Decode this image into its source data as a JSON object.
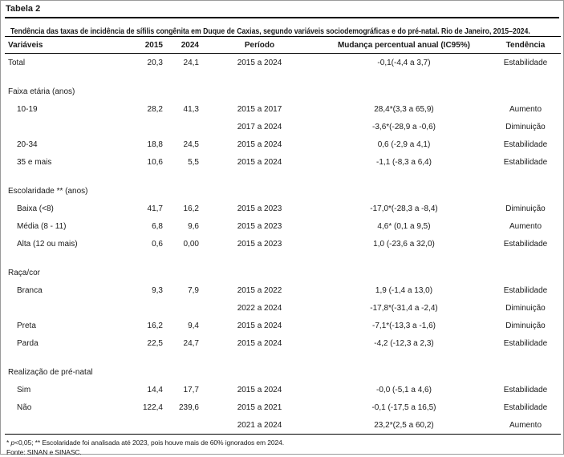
{
  "page": {
    "table_label": "Tabela 2",
    "title": "Tendência das taxas de incidência de sífilis congênita em Duque de Caxias, segundo variáveis sociodemográficas e do pré-natal. Rio de Janeiro, 2015–2024.",
    "footnote_prefix": "* ",
    "footnote_p": "p",
    "footnote_rest": "<0,05; ** Escolaridade foi analisada até 2023, pois houve mais de 60% ignorados em 2024.",
    "source": "Fonte: SINAN e SINASC."
  },
  "table": {
    "columns": [
      "Variáveis",
      "2015",
      "2024",
      "Período",
      "Mudança percentual anual (IC95%)",
      "Tendência"
    ],
    "rows": [
      {
        "type": "data",
        "indent": false,
        "label": "Total",
        "v2015": "20,3",
        "v2024": "24,1",
        "period": "2015 a 2024",
        "change": "-0,1(-4,4 a 3,7)",
        "trend": "Estabilidade"
      },
      {
        "type": "spacer"
      },
      {
        "type": "section",
        "label": "Faixa etária (anos)"
      },
      {
        "type": "data",
        "indent": true,
        "label": "10-19",
        "v2015": "28,2",
        "v2024": "41,3",
        "period": "2015 a 2017",
        "change": "28,4*(3,3 a 65,9)",
        "trend": "Aumento"
      },
      {
        "type": "data",
        "indent": true,
        "label": "",
        "v2015": "",
        "v2024": "",
        "period": "2017 a 2024",
        "change": "-3,6*(-28,9 a -0,6)",
        "trend": "Diminuição"
      },
      {
        "type": "data",
        "indent": true,
        "label": "20-34",
        "v2015": "18,8",
        "v2024": "24,5",
        "period": "2015 a 2024",
        "change": "0,6 (-2,9 a 4,1)",
        "trend": "Estabilidade"
      },
      {
        "type": "data",
        "indent": true,
        "label": "35 e mais",
        "v2015": "10,6",
        "v2024": "5,5",
        "period": "2015 a 2024",
        "change": "-1,1 (-8,3 a 6,4)",
        "trend": "Estabilidade"
      },
      {
        "type": "spacer"
      },
      {
        "type": "section",
        "label": "Escolaridade ** (anos)"
      },
      {
        "type": "data",
        "indent": true,
        "label": "Baixa (<8)",
        "v2015": "41,7",
        "v2024": "16,2",
        "period": "2015 a 2023",
        "change": "-17,0*(-28,3 a -8,4)",
        "trend": "Diminuição"
      },
      {
        "type": "data",
        "indent": true,
        "label": "Média (8 - 11)",
        "v2015": "6,8",
        "v2024": "9,6",
        "period": "2015 a 2023",
        "change": "4,6* (0,1 a 9,5)",
        "trend": "Aumento"
      },
      {
        "type": "data",
        "indent": true,
        "label": "Alta (12 ou mais)",
        "v2015": "0,6",
        "v2024": "0,00",
        "period": "2015 a 2023",
        "change": "1,0 (-23,6 a 32,0)",
        "trend": "Estabilidade"
      },
      {
        "type": "spacer"
      },
      {
        "type": "section",
        "label": "Raça/cor"
      },
      {
        "type": "data",
        "indent": true,
        "label": "Branca",
        "v2015": "9,3",
        "v2024": "7,9",
        "period": "2015 a 2022",
        "change": "1,9 (-1,4 a 13,0)",
        "trend": "Estabilidade"
      },
      {
        "type": "data",
        "indent": true,
        "label": "",
        "v2015": "",
        "v2024": "",
        "period": "2022 a 2024",
        "change": "-17,8*(-31,4 a -2,4)",
        "trend": "Diminuição"
      },
      {
        "type": "data",
        "indent": true,
        "label": "Preta",
        "v2015": "16,2",
        "v2024": "9,4",
        "period": "2015 a 2024",
        "change": "-7,1*(-13,3 a -1,6)",
        "trend": "Diminuição"
      },
      {
        "type": "data",
        "indent": true,
        "label": "Parda",
        "v2015": "22,5",
        "v2024": "24,7",
        "period": "2015 a 2024",
        "change": "-4,2 (-12,3 a 2,3)",
        "trend": "Estabilidade"
      },
      {
        "type": "spacer"
      },
      {
        "type": "section",
        "label": "Realização de pré-natal"
      },
      {
        "type": "data",
        "indent": true,
        "label": "Sim",
        "v2015": "14,4",
        "v2024": "17,7",
        "period": "2015 a 2024",
        "change": "-0,0 (-5,1 a 4,6)",
        "trend": "Estabilidade"
      },
      {
        "type": "data",
        "indent": true,
        "label": "Não",
        "v2015": "122,4",
        "v2024": "239,6",
        "period": "2015 a 2021",
        "change": "-0,1 (-17,5 a 16,5)",
        "trend": "Estabilidade"
      },
      {
        "type": "data",
        "indent": true,
        "label": "",
        "v2015": "",
        "v2024": "",
        "period": "2021 a 2024",
        "change": "23,2*(2,5 a 60,2)",
        "trend": "Aumento"
      }
    ]
  }
}
